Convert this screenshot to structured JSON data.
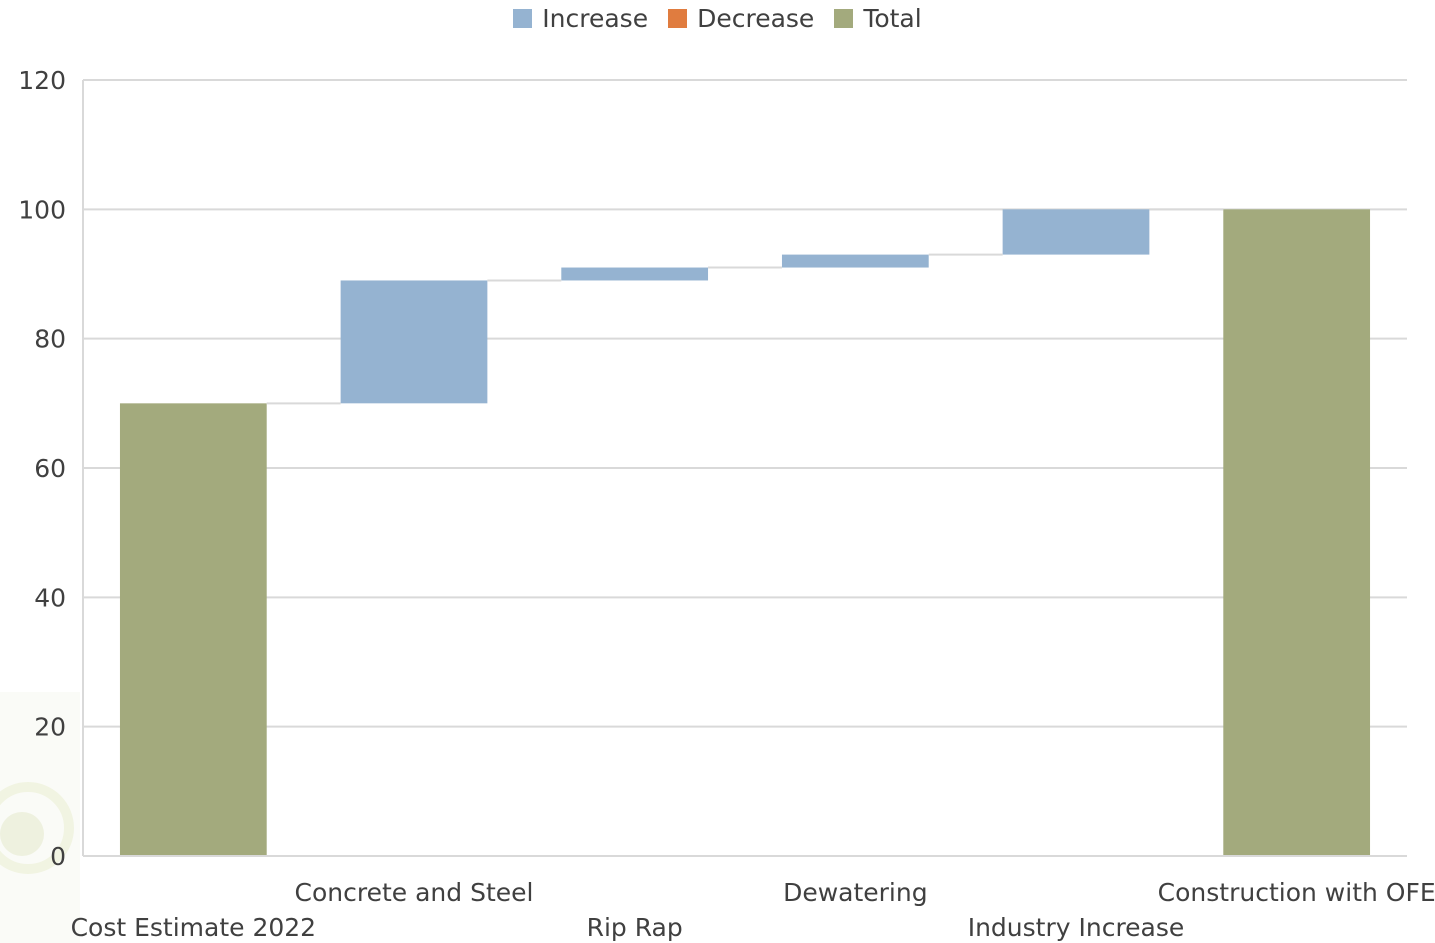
{
  "legend": [
    {
      "label": "Increase",
      "color": "#95b3d1",
      "icon": "increase-swatch"
    },
    {
      "label": "Decrease",
      "color": "#e07c3f",
      "icon": "decrease-swatch"
    },
    {
      "label": "Total",
      "color": "#a3aa7d",
      "icon": "total-swatch"
    }
  ],
  "chart_data": {
    "type": "waterfall",
    "title": "",
    "xlabel": "",
    "ylabel": "",
    "ylim": [
      0,
      120
    ],
    "yticks": [
      0,
      20,
      40,
      60,
      80,
      100,
      120
    ],
    "grid": true,
    "legend_position": "top-center",
    "categories": [
      "Cost Estimate 2022",
      "Concrete and Steel",
      "Rip Rap",
      "Dewatering",
      "Industry Increase",
      "Construction with OFE"
    ],
    "values": [
      70,
      19,
      2,
      2,
      7,
      100
    ],
    "kinds": [
      "total",
      "increase",
      "increase",
      "increase",
      "increase",
      "total"
    ],
    "colors": {
      "increase": "#95b3d1",
      "decrease": "#e07c3f",
      "total": "#a3aa7d"
    }
  }
}
